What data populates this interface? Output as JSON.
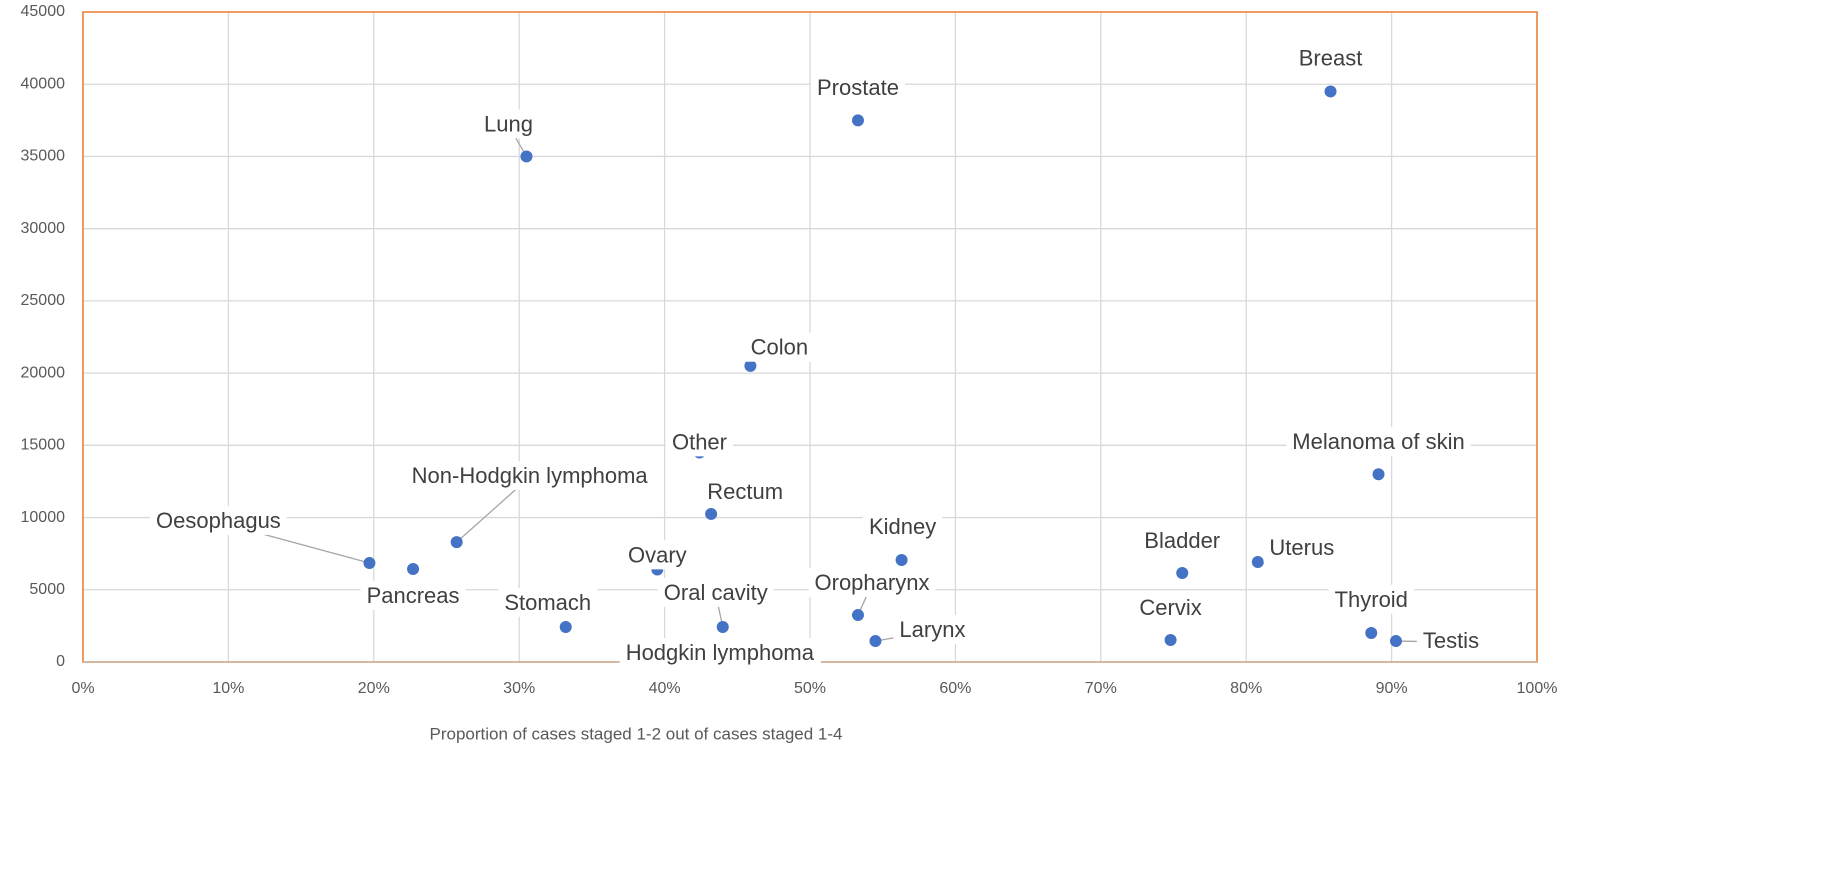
{
  "chart_data": {
    "type": "scatter",
    "x_label": "Proportion of cases staged 1-2 out of cases staged 1-4",
    "xlim": [
      0,
      100
    ],
    "xticks": [
      {
        "value": 0,
        "label": "0%"
      },
      {
        "value": 10,
        "label": "10%"
      },
      {
        "value": 20,
        "label": "20%"
      },
      {
        "value": 30,
        "label": "30%"
      },
      {
        "value": 40,
        "label": "40%"
      },
      {
        "value": 50,
        "label": "50%"
      },
      {
        "value": 60,
        "label": "60%"
      },
      {
        "value": 70,
        "label": "70%"
      },
      {
        "value": 80,
        "label": "80%"
      },
      {
        "value": 90,
        "label": "90%"
      },
      {
        "value": 100,
        "label": "100%"
      }
    ],
    "ylim": [
      0,
      45000
    ],
    "yticks": [
      0,
      5000,
      10000,
      15000,
      20000,
      25000,
      30000,
      35000,
      40000,
      45000
    ],
    "grid": true,
    "color": "#4472c4",
    "series": [
      {
        "name": null,
        "color": "#4472c4",
        "labels": [
          "Lung",
          "Prostate",
          "Breast",
          "Colon",
          "Melanoma of skin",
          "Other",
          "Rectum",
          "Non-Hodgkin lymphoma",
          "Oesophagus",
          "Pancreas",
          "Ovary",
          "Kidney",
          "Bladder",
          "Uterus",
          "Stomach",
          "Oral cavity",
          "Oropharynx",
          "Larynx",
          "Hodgkin lymphoma",
          "Cervix",
          "Thyroid",
          "Testis"
        ],
        "x": [
          30.5,
          53.3,
          85.8,
          45.9,
          89.1,
          42.4,
          43.2,
          25.7,
          19.7,
          22.7,
          39.5,
          56.3,
          75.6,
          80.8,
          33.2,
          44.0,
          53.3,
          54.5,
          43.8,
          74.8,
          88.6,
          90.3
        ],
        "values": [
          35000,
          37500,
          39500,
          20500,
          13000,
          14500,
          10250,
          8300,
          6850,
          6440,
          6400,
          7060,
          6160,
          6920,
          2420,
          2420,
          3250,
          1450,
          600,
          1520,
          2010,
          1450
        ]
      }
    ]
  }
}
